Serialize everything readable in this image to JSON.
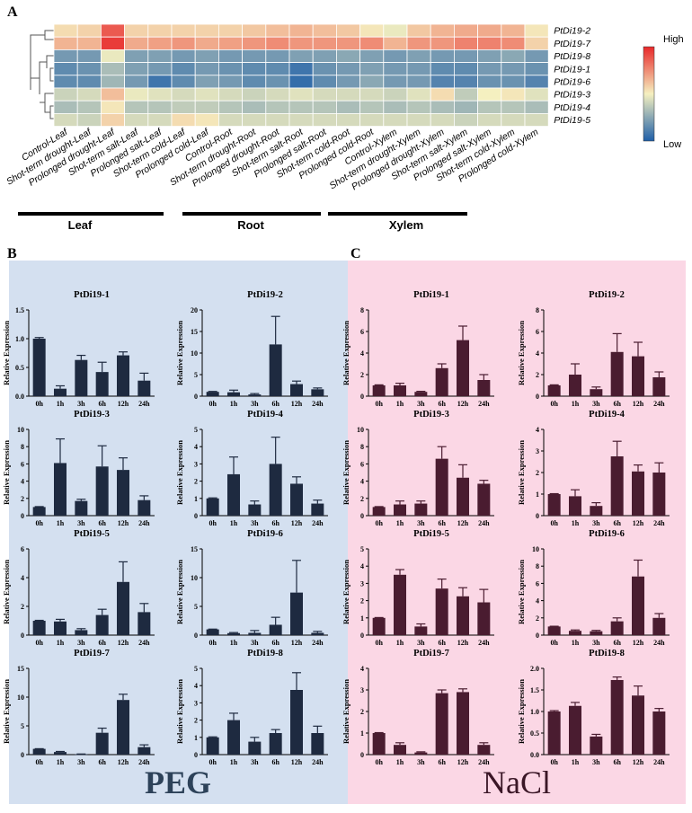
{
  "panel_labels": {
    "a": "A",
    "b": "B",
    "c": "C"
  },
  "heatmap": {
    "legend_high": "High",
    "legend_low": "Low",
    "group_labels": [
      "Leaf",
      "Root",
      "Xylem"
    ],
    "colors": {
      "low": "#1f5fa8",
      "mid": "#f5f0c0",
      "high": "#e8282a"
    }
  },
  "colors": {
    "peg_bg": "#d4e0f0",
    "nacl_bg": "#fbd7e5",
    "peg_bar": "#1e2a40",
    "nacl_bar": "#4a1c30"
  },
  "bottom_labels": {
    "peg": "PEG",
    "nacl": "NaCl"
  },
  "chart_data": [
    {
      "type": "heatmap",
      "rows": [
        "PtDi19-2",
        "PtDi19-7",
        "PtDi19-8",
        "PtDi19-1",
        "PtDi19-6",
        "PtDi19-3",
        "PtDi19-4",
        "PtDi19-5"
      ],
      "columns": [
        "Control-Leaf",
        "Shot-term drought-Leaf",
        "Prolonged drought-Leaf",
        "Shot-term salt-Leaf",
        "Prolonged salt-Leaf",
        "Shot-term cold-Leaf",
        "Prolonged cold-Leaf",
        "Control-Root",
        "Shot-term drought-Root",
        "Prolonged drought-Root",
        "Shot-term salt-Root",
        "Prolonged salt-Root",
        "Shot-term cold-Root",
        "Prolonged cold-Root",
        "Control-Xylem",
        "Shot-term drought-Xylem",
        "Prolonged drought-Xylem",
        "Shot-term salt-Xylem",
        "Prolonged salt-Xylem",
        "Shot-term cold-Xylem",
        "Prolonged cold-Xylem"
      ],
      "values": [
        [
          0.1,
          0.15,
          0.75,
          0.15,
          0.15,
          0.15,
          0.15,
          0.15,
          0.2,
          0.25,
          0.3,
          0.25,
          0.2,
          0.05,
          -0.05,
          0.2,
          0.3,
          0.35,
          0.35,
          0.3,
          0.05
        ],
        [
          0.3,
          0.3,
          0.9,
          0.35,
          0.4,
          0.45,
          0.35,
          0.4,
          0.45,
          0.5,
          0.45,
          0.45,
          0.45,
          0.5,
          0.3,
          0.45,
          0.45,
          0.55,
          0.55,
          0.5,
          0.15
        ],
        [
          -0.6,
          -0.6,
          -0.05,
          -0.55,
          -0.55,
          -0.6,
          -0.55,
          -0.6,
          -0.6,
          -0.6,
          -0.55,
          -0.55,
          -0.5,
          -0.55,
          -0.6,
          -0.55,
          -0.6,
          -0.6,
          -0.55,
          -0.5,
          -0.6
        ],
        [
          -0.7,
          -0.65,
          -0.35,
          -0.55,
          -0.6,
          -0.7,
          -0.6,
          -0.65,
          -0.7,
          -0.7,
          -0.85,
          -0.65,
          -0.6,
          -0.55,
          -0.6,
          -0.6,
          -0.7,
          -0.7,
          -0.6,
          -0.6,
          -0.65
        ],
        [
          -0.7,
          -0.7,
          -0.4,
          -0.6,
          -0.85,
          -0.7,
          -0.55,
          -0.6,
          -0.7,
          -0.65,
          -0.9,
          -0.7,
          -0.6,
          -0.5,
          -0.6,
          -0.6,
          -0.75,
          -0.75,
          -0.65,
          -0.65,
          -0.75
        ],
        [
          -0.2,
          -0.15,
          0.25,
          -0.05,
          -0.1,
          -0.15,
          -0.1,
          -0.15,
          -0.2,
          -0.15,
          -0.1,
          -0.15,
          -0.15,
          -0.15,
          -0.2,
          -0.1,
          0.1,
          -0.25,
          0.0,
          0.05,
          -0.1
        ],
        [
          -0.35,
          -0.3,
          0.05,
          -0.3,
          -0.3,
          -0.25,
          -0.25,
          -0.3,
          -0.35,
          -0.3,
          -0.3,
          -0.3,
          -0.35,
          -0.3,
          -0.35,
          -0.3,
          -0.35,
          -0.4,
          -0.3,
          -0.3,
          -0.35
        ],
        [
          -0.15,
          -0.2,
          0.15,
          -0.15,
          -0.15,
          0.1,
          0.05,
          -0.15,
          -0.15,
          -0.15,
          -0.15,
          -0.15,
          -0.15,
          -0.15,
          -0.15,
          -0.15,
          -0.15,
          -0.2,
          -0.15,
          -0.15,
          -0.15
        ]
      ]
    },
    {
      "type": "bar",
      "group": "PEG",
      "title": "PtDi19-1",
      "ylabel": "Relative Expression",
      "categories": [
        "0h",
        "1h",
        "3h",
        "6h",
        "12h",
        "24h"
      ],
      "values": [
        1.0,
        0.13,
        0.63,
        0.42,
        0.71,
        0.27
      ],
      "errors": [
        0.02,
        0.05,
        0.08,
        0.17,
        0.06,
        0.13
      ],
      "ylim": [
        0,
        1.5
      ],
      "ticks": [
        0,
        0.5,
        1.0,
        1.5
      ],
      "tick_labels": [
        "0.0",
        "0.5",
        "1.0",
        "1.5"
      ]
    },
    {
      "type": "bar",
      "group": "PEG",
      "title": "PtDi19-2",
      "ylabel": "Relative Expression",
      "categories": [
        "0h",
        "1h",
        "3h",
        "6h",
        "12h",
        "24h"
      ],
      "values": [
        1.0,
        0.9,
        0.4,
        12.0,
        2.8,
        1.6
      ],
      "errors": [
        0.1,
        0.5,
        0.2,
        6.5,
        0.7,
        0.3
      ],
      "ylim": [
        0,
        20
      ],
      "ticks": [
        0,
        5,
        10,
        15,
        20
      ],
      "tick_labels": [
        "0",
        "5",
        "10",
        "15",
        "20"
      ]
    },
    {
      "type": "bar",
      "group": "PEG",
      "title": "PtDi19-3",
      "ylabel": "Relative Expression",
      "categories": [
        "0h",
        "1h",
        "3h",
        "6h",
        "12h",
        "24h"
      ],
      "values": [
        1.0,
        6.1,
        1.7,
        5.7,
        5.3,
        1.8
      ],
      "errors": [
        0.05,
        2.8,
        0.2,
        2.4,
        1.4,
        0.5
      ],
      "ylim": [
        0,
        10
      ],
      "ticks": [
        0,
        2,
        4,
        6,
        8,
        10
      ],
      "tick_labels": [
        "0",
        "2",
        "4",
        "6",
        "8",
        "10"
      ]
    },
    {
      "type": "bar",
      "group": "PEG",
      "title": "PtDi19-4",
      "ylabel": "Relative Expression",
      "categories": [
        "0h",
        "1h",
        "3h",
        "6h",
        "12h",
        "24h"
      ],
      "values": [
        1.0,
        2.4,
        0.65,
        3.0,
        1.85,
        0.7
      ],
      "errors": [
        0.03,
        1.0,
        0.2,
        1.55,
        0.4,
        0.2
      ],
      "ylim": [
        0,
        5
      ],
      "ticks": [
        0,
        1,
        2,
        3,
        4,
        5
      ],
      "tick_labels": [
        "0",
        "1",
        "2",
        "3",
        "4",
        "5"
      ]
    },
    {
      "type": "bar",
      "group": "PEG",
      "title": "PtDi19-5",
      "ylabel": "Relative Expression",
      "categories": [
        "0h",
        "1h",
        "3h",
        "6h",
        "12h",
        "24h"
      ],
      "values": [
        1.0,
        0.95,
        0.35,
        1.4,
        3.7,
        1.6
      ],
      "errors": [
        0.03,
        0.15,
        0.1,
        0.4,
        1.4,
        0.6
      ],
      "ylim": [
        0,
        6
      ],
      "ticks": [
        0,
        2,
        4,
        6
      ],
      "tick_labels": [
        "0",
        "2",
        "4",
        "6"
      ]
    },
    {
      "type": "bar",
      "group": "PEG",
      "title": "PtDi19-6",
      "ylabel": "Relative Expression",
      "categories": [
        "0h",
        "1h",
        "3h",
        "6h",
        "12h",
        "24h"
      ],
      "values": [
        1.0,
        0.35,
        0.4,
        1.8,
        7.4,
        0.4
      ],
      "errors": [
        0.05,
        0.1,
        0.4,
        1.3,
        5.6,
        0.25
      ],
      "ylim": [
        0,
        15
      ],
      "ticks": [
        0,
        5,
        10,
        15
      ],
      "tick_labels": [
        "0",
        "5",
        "10",
        "15"
      ]
    },
    {
      "type": "bar",
      "group": "PEG",
      "title": "PtDi19-7",
      "ylabel": "Relative Expression",
      "categories": [
        "0h",
        "1h",
        "3h",
        "6h",
        "12h",
        "24h"
      ],
      "values": [
        1.0,
        0.45,
        0.08,
        3.8,
        9.5,
        1.3
      ],
      "errors": [
        0.03,
        0.1,
        0.03,
        0.8,
        1.0,
        0.4
      ],
      "ylim": [
        0,
        15
      ],
      "ticks": [
        0,
        5,
        10,
        15
      ],
      "tick_labels": [
        "0",
        "5",
        "10",
        "15"
      ]
    },
    {
      "type": "bar",
      "group": "PEG",
      "title": "PtDi19-8",
      "ylabel": "Relative Expression",
      "categories": [
        "0h",
        "1h",
        "3h",
        "6h",
        "12h",
        "24h"
      ],
      "values": [
        1.0,
        2.0,
        0.75,
        1.25,
        3.75,
        1.25
      ],
      "errors": [
        0.03,
        0.4,
        0.25,
        0.2,
        1.0,
        0.4
      ],
      "ylim": [
        0,
        5
      ],
      "ticks": [
        0,
        1,
        2,
        3,
        4,
        5
      ],
      "tick_labels": [
        "0",
        "1",
        "2",
        "3",
        "4",
        "5"
      ]
    },
    {
      "type": "bar",
      "group": "NaCl",
      "title": "PtDi19-1",
      "ylabel": "Relative Expression",
      "categories": [
        "0h",
        "1h",
        "3h",
        "6h",
        "12h",
        "24h"
      ],
      "values": [
        1.0,
        1.0,
        0.4,
        2.6,
        5.2,
        1.5
      ],
      "errors": [
        0.05,
        0.2,
        0.05,
        0.4,
        1.3,
        0.5
      ],
      "ylim": [
        0,
        8
      ],
      "ticks": [
        0,
        2,
        4,
        6,
        8
      ],
      "tick_labels": [
        "0",
        "2",
        "4",
        "6",
        "8"
      ]
    },
    {
      "type": "bar",
      "group": "NaCl",
      "title": "PtDi19-2",
      "ylabel": "Relative Expression",
      "categories": [
        "0h",
        "1h",
        "3h",
        "6h",
        "12h",
        "24h"
      ],
      "values": [
        1.0,
        2.0,
        0.65,
        4.1,
        3.7,
        1.75
      ],
      "errors": [
        0.05,
        1.0,
        0.2,
        1.7,
        1.3,
        0.5
      ],
      "ylim": [
        0,
        8
      ],
      "ticks": [
        0,
        2,
        4,
        6,
        8
      ],
      "tick_labels": [
        "0",
        "2",
        "4",
        "6",
        "8"
      ]
    },
    {
      "type": "bar",
      "group": "NaCl",
      "title": "PtDi19-3",
      "ylabel": "Relative Expression",
      "categories": [
        "0h",
        "1h",
        "3h",
        "6h",
        "12h",
        "24h"
      ],
      "values": [
        1.0,
        1.3,
        1.4,
        6.6,
        4.4,
        3.7
      ],
      "errors": [
        0.05,
        0.4,
        0.3,
        1.4,
        1.5,
        0.4
      ],
      "ylim": [
        0,
        10
      ],
      "ticks": [
        0,
        2,
        4,
        6,
        8,
        10
      ],
      "tick_labels": [
        "0",
        "2",
        "4",
        "6",
        "8",
        "10"
      ]
    },
    {
      "type": "bar",
      "group": "NaCl",
      "title": "PtDi19-4",
      "ylabel": "Relative Expression",
      "categories": [
        "0h",
        "1h",
        "3h",
        "6h",
        "12h",
        "24h"
      ],
      "values": [
        1.0,
        0.9,
        0.45,
        2.75,
        2.05,
        2.0
      ],
      "errors": [
        0.02,
        0.3,
        0.15,
        0.7,
        0.3,
        0.45
      ],
      "ylim": [
        0,
        4
      ],
      "ticks": [
        0,
        1,
        2,
        3,
        4
      ],
      "tick_labels": [
        "0",
        "1",
        "2",
        "3",
        "4"
      ]
    },
    {
      "type": "bar",
      "group": "NaCl",
      "title": "PtDi19-5",
      "ylabel": "Relative Expression",
      "categories": [
        "0h",
        "1h",
        "3h",
        "6h",
        "12h",
        "24h"
      ],
      "values": [
        1.0,
        3.5,
        0.5,
        2.7,
        2.25,
        1.9
      ],
      "errors": [
        0.02,
        0.3,
        0.15,
        0.55,
        0.5,
        0.75
      ],
      "ylim": [
        0,
        5
      ],
      "ticks": [
        0,
        1,
        2,
        3,
        4,
        5
      ],
      "tick_labels": [
        "0",
        "1",
        "2",
        "3",
        "4",
        "5"
      ]
    },
    {
      "type": "bar",
      "group": "NaCl",
      "title": "PtDi19-6",
      "ylabel": "Relative Expression",
      "categories": [
        "0h",
        "1h",
        "3h",
        "6h",
        "12h",
        "24h"
      ],
      "values": [
        1.0,
        0.5,
        0.45,
        1.6,
        6.8,
        2.0
      ],
      "errors": [
        0.03,
        0.1,
        0.1,
        0.4,
        1.9,
        0.5
      ],
      "ylim": [
        0,
        10
      ],
      "ticks": [
        0,
        2,
        4,
        6,
        8,
        10
      ],
      "tick_labels": [
        "0",
        "2",
        "4",
        "6",
        "8",
        "10"
      ]
    },
    {
      "type": "bar",
      "group": "NaCl",
      "title": "PtDi19-7",
      "ylabel": "Relative Expression",
      "categories": [
        "0h",
        "1h",
        "3h",
        "6h",
        "12h",
        "24h"
      ],
      "values": [
        1.0,
        0.45,
        0.1,
        2.85,
        2.9,
        0.45
      ],
      "errors": [
        0.02,
        0.1,
        0.03,
        0.15,
        0.15,
        0.1
      ],
      "ylim": [
        0,
        4
      ],
      "ticks": [
        0,
        1,
        2,
        3,
        4
      ],
      "tick_labels": [
        "0",
        "1",
        "2",
        "3",
        "4"
      ]
    },
    {
      "type": "bar",
      "group": "NaCl",
      "title": "PtDi19-8",
      "ylabel": "Relative Expression",
      "categories": [
        "0h",
        "1h",
        "3h",
        "6h",
        "12h",
        "24h"
      ],
      "values": [
        1.0,
        1.13,
        0.42,
        1.73,
        1.37,
        1.0
      ],
      "errors": [
        0.02,
        0.08,
        0.05,
        0.07,
        0.22,
        0.07
      ],
      "ylim": [
        0,
        2.0
      ],
      "ticks": [
        0,
        0.5,
        1.0,
        1.5,
        2.0
      ],
      "tick_labels": [
        "0.0",
        "0.5",
        "1.0",
        "1.5",
        "2.0"
      ]
    }
  ]
}
